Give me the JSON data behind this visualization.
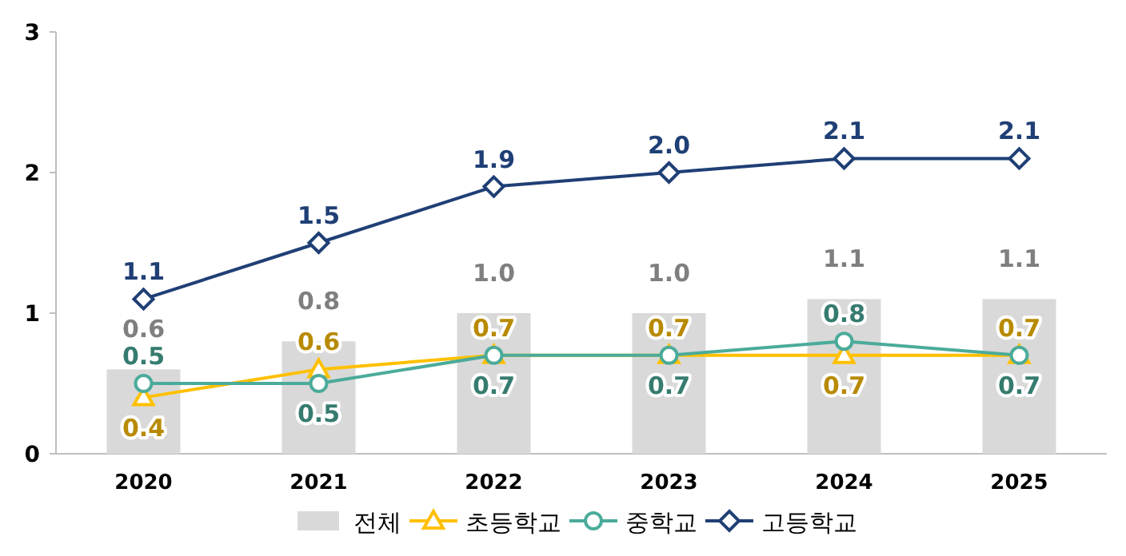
{
  "chart_data": {
    "type": "bar",
    "categories": [
      "2020",
      "2021",
      "2022",
      "2023",
      "2024",
      "2025"
    ],
    "series": [
      {
        "name": "전체",
        "color": "#d9d9d9",
        "values": [
          0.6,
          0.8,
          1.0,
          1.0,
          1.1,
          1.1
        ],
        "value_labels": [
          "0.6",
          "0.8",
          "1.0",
          "1.0",
          "1.1",
          "1.1"
        ]
      },
      {
        "name": "초등학교",
        "type": "line",
        "color": "#ffc000",
        "marker": "triangle",
        "values": [
          0.4,
          0.6,
          0.7,
          0.7,
          0.7,
          0.7
        ],
        "value_labels": [
          "0.4",
          "0.6",
          "0.7",
          "0.7",
          "0.7",
          "0.7"
        ]
      },
      {
        "name": "중학교",
        "type": "line",
        "color": "#4bab9a",
        "marker": "circle",
        "values": [
          0.5,
          0.5,
          0.7,
          0.7,
          0.8,
          0.7
        ],
        "value_labels": [
          "0.5",
          "0.5",
          "0.7",
          "0.7",
          "0.8",
          "0.7"
        ]
      },
      {
        "name": "고등학교",
        "type": "line",
        "color": "#1f3f75",
        "marker": "diamond",
        "values": [
          1.1,
          1.5,
          1.9,
          2.0,
          2.1,
          2.1
        ],
        "value_labels": [
          "1.1",
          "1.5",
          "1.9",
          "2.0",
          "2.1",
          "2.1"
        ]
      }
    ],
    "ylim": [
      0,
      3
    ],
    "yticks": [
      0,
      1,
      2,
      3
    ],
    "grid": false,
    "legend": "bottom"
  }
}
